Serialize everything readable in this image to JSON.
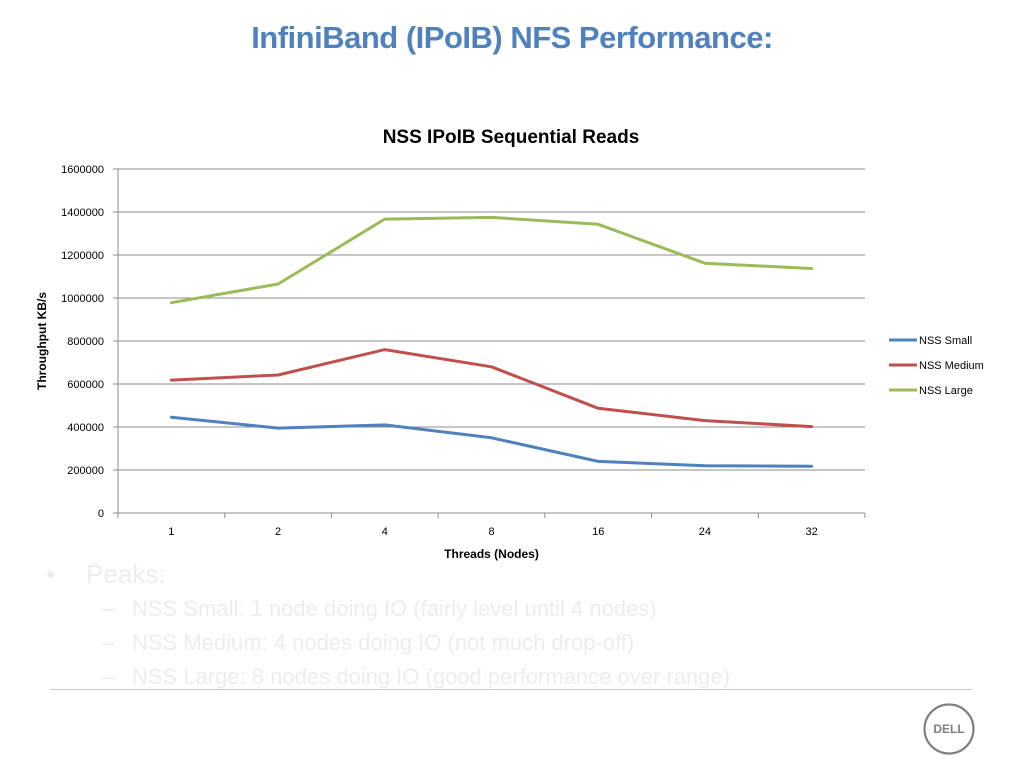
{
  "slide": {
    "title": "InfiniBand (IPoIB) NFS Performance:",
    "title_color": "#4F81BD",
    "text_color": "#ededed",
    "rule_color": "#c9c9c9"
  },
  "chart_data": {
    "type": "line",
    "title": "NSS IPoIB Sequential Reads",
    "xlabel": "Threads (Nodes)",
    "ylabel": "Throughput KB/s",
    "categories": [
      "1",
      "2",
      "4",
      "8",
      "16",
      "24",
      "32"
    ],
    "ylim": [
      0,
      1600000
    ],
    "yticks": [
      "0",
      "200000",
      "400000",
      "600000",
      "800000",
      "1000000",
      "1200000",
      "1400000",
      "1600000"
    ],
    "grid": true,
    "legend_position": "right",
    "series": [
      {
        "name": "NSS Small",
        "color": "#4F81BD",
        "values": [
          445000,
          395000,
          410000,
          350000,
          240000,
          220000,
          217000
        ]
      },
      {
        "name": "NSS Medium",
        "color": "#C0504D",
        "values": [
          618000,
          642000,
          760000,
          680000,
          487000,
          430000,
          402000
        ]
      },
      {
        "name": "NSS Large",
        "color": "#9BBB59",
        "values": [
          978000,
          1065000,
          1367000,
          1375000,
          1343000,
          1162000,
          1137000
        ]
      }
    ]
  },
  "bullets": {
    "main": {
      "marker": "•",
      "text": "Peaks:"
    },
    "sub": [
      {
        "marker": "–",
        "text": "NSS Small: 1 node doing IO (fairly level until 4 nodes)"
      },
      {
        "marker": "–",
        "text": "NSS Medium: 4 nodes doing IO (not much drop-off)"
      },
      {
        "marker": "–",
        "text": "NSS Large: 8 nodes doing IO (good performance over range)"
      }
    ]
  },
  "logo": {
    "text": "DELL",
    "color": "#7f7f7f"
  }
}
